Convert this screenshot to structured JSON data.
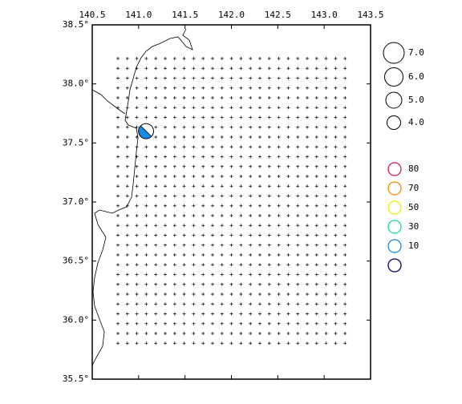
{
  "map": {
    "xlim": [
      140.5,
      143.5
    ],
    "ylim": [
      35.5,
      38.5
    ],
    "xticks": [
      {
        "value": 140.5,
        "label": "140.5"
      },
      {
        "value": 141.0,
        "label": "141.0"
      },
      {
        "value": 141.5,
        "label": "141.5"
      },
      {
        "value": 142.0,
        "label": "142.0"
      },
      {
        "value": 142.5,
        "label": "142.5"
      },
      {
        "value": 143.0,
        "label": "143.0"
      },
      {
        "value": 143.5,
        "label": "143.5"
      }
    ],
    "yticks": [
      {
        "value": 38.5,
        "label": "38.5°"
      },
      {
        "value": 38.0,
        "label": "38.0°"
      },
      {
        "value": 37.5,
        "label": "37.5°"
      },
      {
        "value": 37.0,
        "label": "37.0°"
      },
      {
        "value": 36.5,
        "label": "36.5°"
      },
      {
        "value": 36.0,
        "label": "36.0°"
      },
      {
        "value": 35.5,
        "label": "35.5°"
      }
    ],
    "events": [
      {
        "lon": 141.08,
        "lat": 37.6,
        "mag": 4.6,
        "color": "#1a8ae6"
      }
    ],
    "magnitude_legend": [
      {
        "value": 7.0,
        "label": "7.0"
      },
      {
        "value": 6.0,
        "label": "6.0"
      },
      {
        "value": 5.0,
        "label": "5.0"
      },
      {
        "value": 4.0,
        "label": "4.0"
      }
    ],
    "depth_legend": [
      {
        "value": 80,
        "color": "#d0186a"
      },
      {
        "value": 70,
        "color": "#f08c00"
      },
      {
        "value": 50,
        "color": "#f0f000"
      },
      {
        "value": 30,
        "color": "#10e090"
      },
      {
        "value": 10,
        "color": "#1a8ae6"
      },
      {
        "value": null,
        "color": "#000060"
      }
    ]
  }
}
